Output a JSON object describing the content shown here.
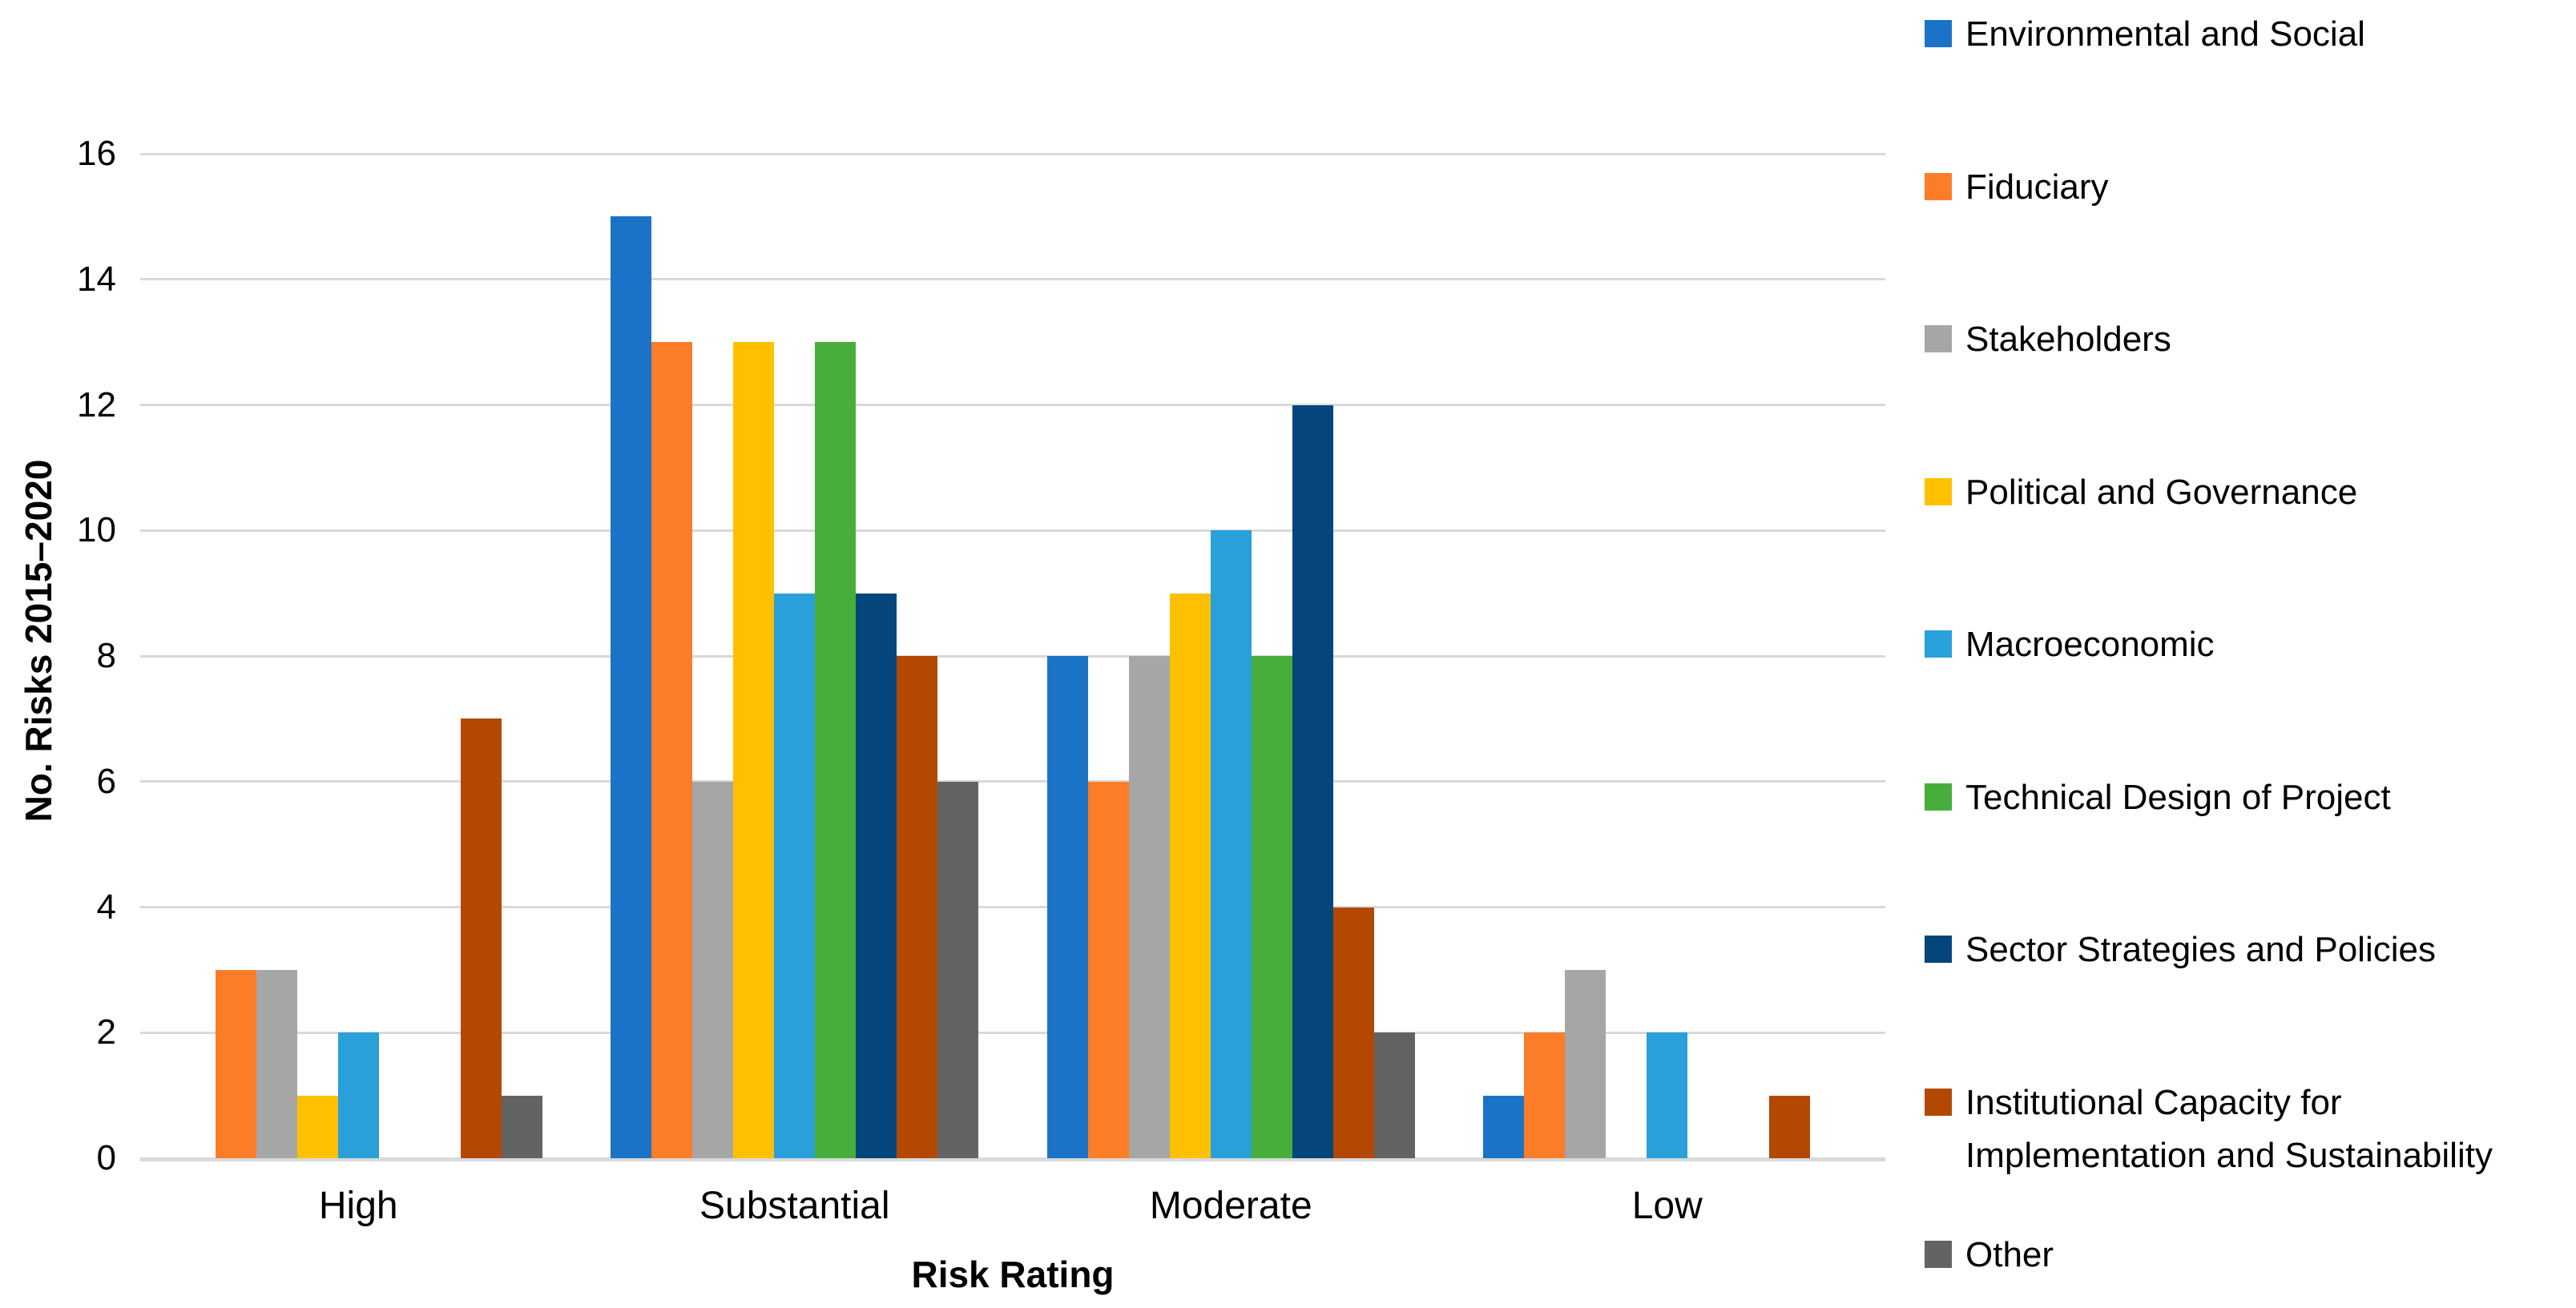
{
  "chart_data": {
    "type": "bar",
    "title": "",
    "xlabel": "Risk Rating",
    "ylabel": "No. Risks 2015–2020",
    "categories": [
      "High",
      "Substantial",
      "Moderate",
      "Low"
    ],
    "series": [
      {
        "name": "Environmental and Social",
        "color": "#1B73C7",
        "values": [
          0,
          15,
          8,
          1
        ]
      },
      {
        "name": "Fiduciary",
        "color": "#FB7D28",
        "values": [
          3,
          13,
          6,
          2
        ]
      },
      {
        "name": "Stakeholders",
        "color": "#A6A6A6",
        "values": [
          3,
          6,
          8,
          3
        ]
      },
      {
        "name": "Political and Governance",
        "color": "#FFC000",
        "values": [
          1,
          13,
          9,
          0
        ]
      },
      {
        "name": "Macroeconomic",
        "color": "#29A0DA",
        "values": [
          2,
          9,
          10,
          2
        ]
      },
      {
        "name": "Technical Design of Project",
        "color": "#47AE3B",
        "values": [
          0,
          13,
          8,
          0
        ]
      },
      {
        "name": "Sector Strategies and Policies",
        "color": "#04457C",
        "values": [
          0,
          9,
          12,
          0
        ]
      },
      {
        "name": "Institutional Capacity for Implementation and Sustainability",
        "color": "#B34802",
        "values": [
          7,
          8,
          4,
          1
        ]
      },
      {
        "name": "Other",
        "color": "#636363",
        "values": [
          1,
          6,
          2,
          0
        ]
      }
    ],
    "y_ticks": [
      0,
      2,
      4,
      6,
      8,
      10,
      12,
      14,
      16
    ],
    "ylim": [
      0,
      16
    ],
    "grid": true,
    "legend_position": "right",
    "gridline_color": "#D9D9D9",
    "background_color": "#FFFFFF",
    "text_color": "#000000"
  }
}
